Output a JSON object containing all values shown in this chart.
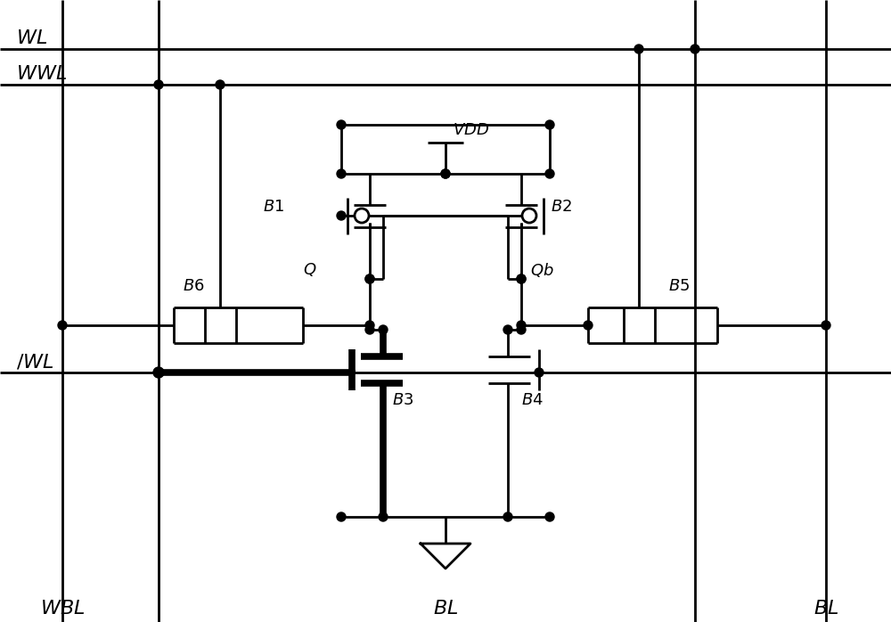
{
  "bg_color": "#ffffff",
  "line_color": "#000000",
  "lw": 2.0,
  "lw_thick": 5.5,
  "figsize": [
    10.0,
    6.98
  ],
  "dpi": 100
}
